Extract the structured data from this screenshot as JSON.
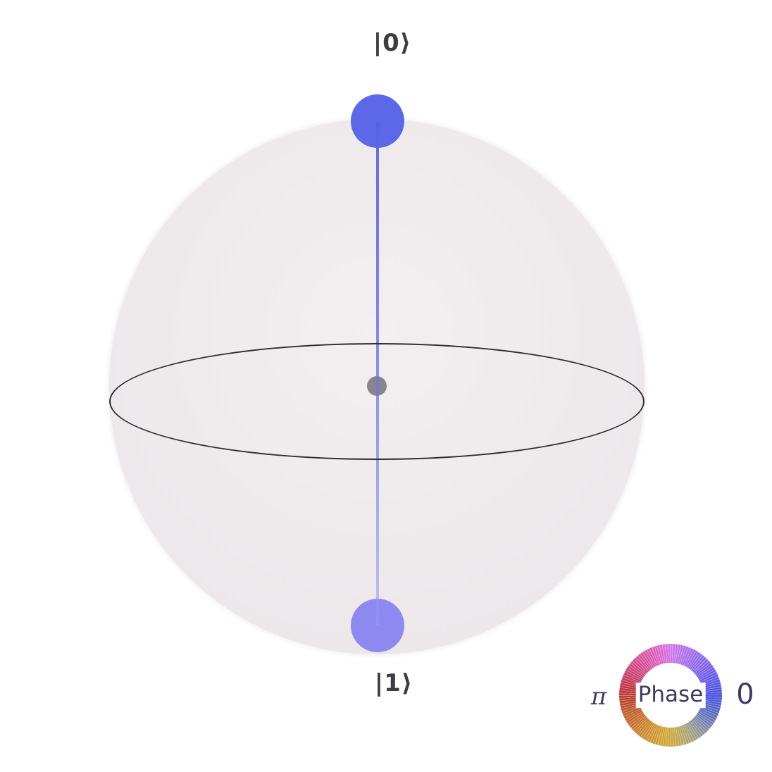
{
  "figure": {
    "kind": "qsphere-state-plot",
    "labels": {
      "ket0": "|0⟩",
      "ket1": "|1⟩"
    },
    "legend": {
      "title": "Phase",
      "left_label": "π",
      "right_label": "0"
    },
    "colors": {
      "background": "#ffffff",
      "sphere_fill": "#ece9ec",
      "equator_stroke": "#2e2e2e",
      "state_line": "#5c68e2",
      "node_top": "#5c68e8",
      "node_bottom": "#8e89f0",
      "origin_dot": "#8a8589",
      "ket_text": "#3e3c42",
      "legend_text": "#3c3c62",
      "phase_0_color": "#4b52e0",
      "phase_pi_color": "#bc3434"
    }
  },
  "chart_data": {
    "type": "scatter",
    "variant": "qsphere",
    "title": "",
    "points": [
      {
        "basis_state": "|0⟩",
        "pole": "north",
        "phase": 0,
        "phase_color": "#5c68e8",
        "relative_size": 1
      },
      {
        "basis_state": "|1⟩",
        "pole": "south",
        "phase": 0,
        "phase_color": "#8e89f0",
        "relative_size": 1
      }
    ],
    "connectors": [
      {
        "from": "|0⟩",
        "to": "|1⟩",
        "style": "vertical-line-through-origin"
      }
    ],
    "legend": {
      "title": "Phase",
      "ring": true,
      "left_value": "π",
      "right_value": "0",
      "position": "bottom-right"
    },
    "layout_hints": {
      "equator_shown": true,
      "sphere_translucent": true,
      "grid": false
    }
  }
}
